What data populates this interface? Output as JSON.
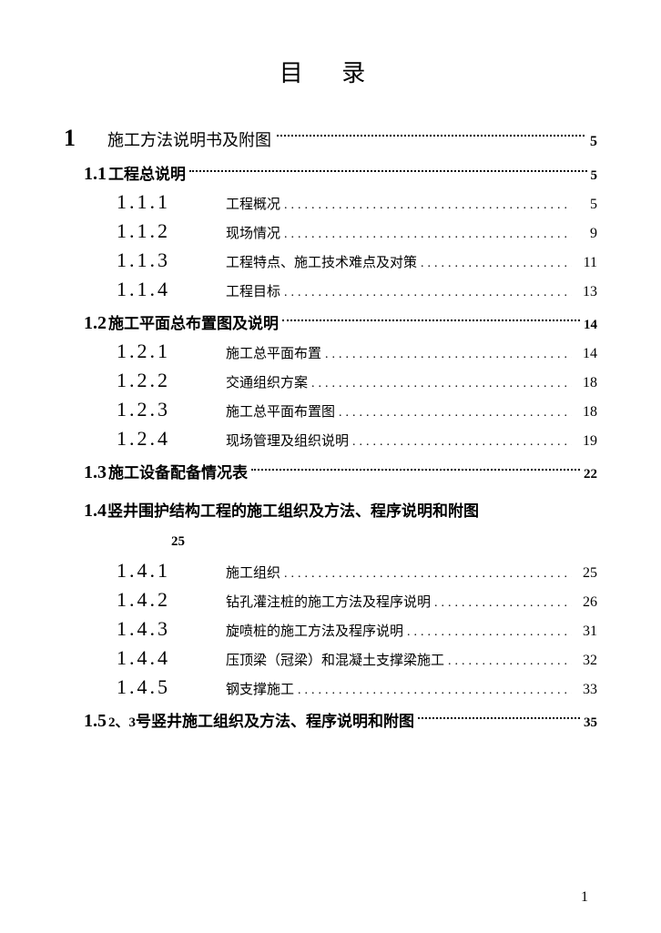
{
  "title": "目 录",
  "entries": [
    {
      "num": "1",
      "text": "施工方法说明书及附图",
      "page": "5",
      "level": 1
    },
    {
      "num": "1.1",
      "text": "工程总说明",
      "page": "5",
      "level": 2
    },
    {
      "num": "1.1.1",
      "text": "工程概况",
      "page": "5",
      "level": 3
    },
    {
      "num": "1.1.2",
      "text": "现场情况",
      "page": "9",
      "level": 3
    },
    {
      "num": "1.1.3",
      "text": "工程特点、施工技术难点及对策",
      "page": "11",
      "level": 3
    },
    {
      "num": "1.1.4",
      "text": "工程目标",
      "page": "13",
      "level": 3
    },
    {
      "num": "1.2",
      "text": "施工平面总布置图及说明",
      "page": "14",
      "level": 2
    },
    {
      "num": "1.2.1",
      "text": "施工总平面布置",
      "page": "14",
      "level": 3
    },
    {
      "num": "1.2.2",
      "text": "交通组织方案",
      "page": "18",
      "level": 3
    },
    {
      "num": "1.2.3",
      "text": "施工总平面布置图",
      "page": "18",
      "level": 3
    },
    {
      "num": "1.2.4",
      "text": "现场管理及组织说明",
      "page": "19",
      "level": 3
    },
    {
      "num": "1.3",
      "text": "施工设备配备情况表",
      "page": "22",
      "level": 2
    },
    {
      "num": "1.4",
      "text": "竖井围护结构工程的施工组织及方法、程序说明和附图",
      "page_suffix": "25",
      "level": 2,
      "nolead": true
    },
    {
      "num": "1.4.1",
      "text": "施工组织",
      "page": "25",
      "level": 3
    },
    {
      "num": "1.4.2",
      "text": "钻孔灌注桩的施工方法及程序说明",
      "page": "26",
      "level": 3
    },
    {
      "num": "1.4.3",
      "text": "旋喷桩的施工方法及程序说明",
      "page": "31",
      "level": 3
    },
    {
      "num": "1.4.4",
      "text": "压顶梁（冠梁）和混凝土支撑梁施工",
      "page": "32",
      "level": 3
    },
    {
      "num": "1.4.5",
      "text": "钢支撑施工",
      "page": "33",
      "level": 3
    },
    {
      "num": "1.5",
      "text": "2、3 号竖井施工组织及方法、程序说明和附图",
      "page": "35",
      "level": 2,
      "mixed": true
    }
  ],
  "pageNumber": "1"
}
